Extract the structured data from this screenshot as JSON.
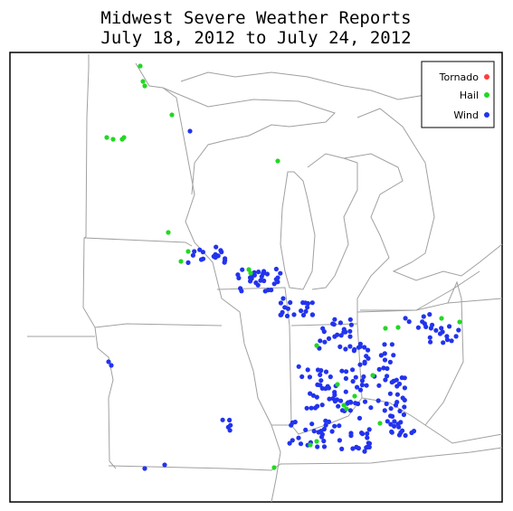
{
  "title": "Midwest Severe Weather Reports",
  "subtitle": "July 18, 2012 to July 24, 2012",
  "legend": [
    {
      "label": "Tornado"
    },
    {
      "label": "Hail"
    },
    {
      "label": "Wind"
    }
  ]
}
